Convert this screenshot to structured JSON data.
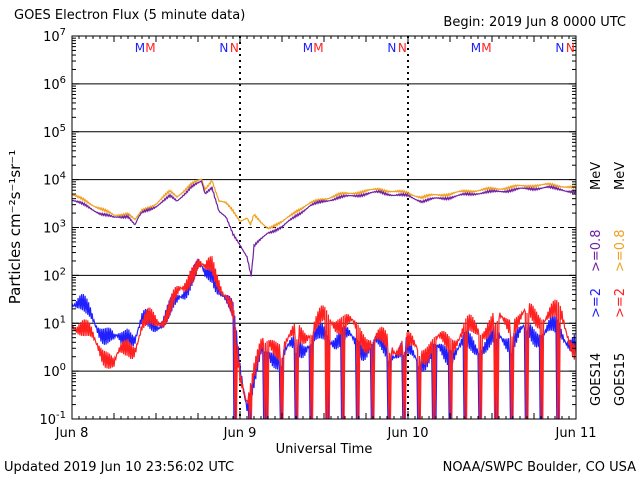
{
  "header": {
    "title": "GOES Electron Flux (5 minute data)",
    "begin": "Begin: 2019 Jun 8 0000 UTC"
  },
  "footer": {
    "updated": "Updated 2019 Jun 10 23:56:02 UTC",
    "source": "NOAA/SWPC Boulder, CO USA"
  },
  "chart_data": {
    "type": "line",
    "xlabel": "Universal Time",
    "ylabel": "Particles cm⁻²s⁻¹sr⁻¹",
    "x_unit": "hours since 2019 Jun 8 0000 UTC",
    "xlim": [
      0,
      72
    ],
    "ylim_log10": [
      -1,
      7
    ],
    "yscale": "log",
    "x_ticks": [
      {
        "x": 0,
        "label": "Jun 8"
      },
      {
        "x": 24,
        "label": "Jun 9"
      },
      {
        "x": 48,
        "label": "Jun 10"
      },
      {
        "x": 72,
        "label": "Jun 11"
      }
    ],
    "y_ticks": [
      {
        "exp": -1,
        "label": "10",
        "sup": "-1"
      },
      {
        "exp": 0,
        "label": "10",
        "sup": "0"
      },
      {
        "exp": 1,
        "label": "10",
        "sup": "1"
      },
      {
        "exp": 2,
        "label": "10",
        "sup": "2"
      },
      {
        "exp": 3,
        "label": "10",
        "sup": "3"
      },
      {
        "exp": 4,
        "label": "10",
        "sup": "4"
      },
      {
        "exp": 5,
        "label": "10",
        "sup": "5"
      },
      {
        "exp": 6,
        "label": "10",
        "sup": "6"
      },
      {
        "exp": 7,
        "label": "10",
        "sup": "7"
      }
    ],
    "grid_y_exps": [
      0,
      1,
      2,
      3,
      4,
      5,
      6
    ],
    "dashed_threshold_exp": 3,
    "midnight_marks": [
      24,
      48
    ],
    "markers": [
      {
        "x": 9.7,
        "text": "M",
        "color": "#2020ff"
      },
      {
        "x": 11.2,
        "text": "M",
        "color": "#ff2020"
      },
      {
        "x": 21.7,
        "text": "N",
        "color": "#2020ff"
      },
      {
        "x": 23.2,
        "text": "N",
        "color": "#ff2020"
      },
      {
        "x": 33.7,
        "text": "M",
        "color": "#2020ff"
      },
      {
        "x": 35.2,
        "text": "M",
        "color": "#ff2020"
      },
      {
        "x": 45.7,
        "text": "N",
        "color": "#2020ff"
      },
      {
        "x": 47.2,
        "text": "N",
        "color": "#ff2020"
      },
      {
        "x": 57.7,
        "text": "M",
        "color": "#2020ff"
      },
      {
        "x": 59.2,
        "text": "M",
        "color": "#ff2020"
      },
      {
        "x": 69.7,
        "text": "N",
        "color": "#2020ff"
      },
      {
        "x": 71.2,
        "text": "N",
        "color": "#ff2020"
      }
    ],
    "legend": {
      "groups": [
        {
          "sat": "GOES14",
          "lo_label": ">=2",
          "hi_label": ">=0.8",
          "lo_color": "#2020ff",
          "hi_color": "#7020a0"
        },
        {
          "sat": "GOES15",
          "lo_label": ">=2",
          "hi_label": ">=0.8",
          "lo_color": "#ff2020",
          "hi_color": "#f0a020"
        }
      ],
      "unit": "MeV"
    },
    "series": [
      {
        "name": "GOES15 >=0.8 MeV",
        "color": "#f0a020",
        "log10_points": [
          [
            0,
            3.68
          ],
          [
            2,
            3.55
          ],
          [
            4,
            3.4
          ],
          [
            6,
            3.25
          ],
          [
            8,
            3.3
          ],
          [
            9,
            3.15
          ],
          [
            9.5,
            3.25
          ],
          [
            10,
            3.35
          ],
          [
            12,
            3.5
          ],
          [
            14,
            3.75
          ],
          [
            15,
            3.65
          ],
          [
            17,
            3.9
          ],
          [
            18.5,
            4.0
          ],
          [
            19,
            3.8
          ],
          [
            20,
            4.0
          ],
          [
            21,
            3.55
          ],
          [
            22,
            3.5
          ],
          [
            23,
            3.35
          ],
          [
            24,
            3.15
          ],
          [
            25,
            3.2
          ],
          [
            25.5,
            3.05
          ],
          [
            26,
            3.25
          ],
          [
            27,
            3.1
          ],
          [
            28,
            3.0
          ],
          [
            29,
            3.05
          ],
          [
            30,
            3.1
          ],
          [
            32,
            3.35
          ],
          [
            34,
            3.5
          ],
          [
            36,
            3.6
          ],
          [
            38,
            3.68
          ],
          [
            40,
            3.72
          ],
          [
            42,
            3.76
          ],
          [
            44,
            3.8
          ],
          [
            46,
            3.75
          ],
          [
            48,
            3.72
          ],
          [
            50,
            3.63
          ],
          [
            52,
            3.68
          ],
          [
            54,
            3.7
          ],
          [
            56,
            3.75
          ],
          [
            58,
            3.78
          ],
          [
            60,
            3.8
          ],
          [
            62,
            3.83
          ],
          [
            64,
            3.86
          ],
          [
            66,
            3.88
          ],
          [
            68,
            3.89
          ],
          [
            70,
            3.87
          ],
          [
            72,
            3.82
          ]
        ]
      },
      {
        "name": "GOES14 >=0.8 MeV",
        "color": "#7020a0",
        "log10_points": [
          [
            0,
            3.58
          ],
          [
            2,
            3.45
          ],
          [
            4,
            3.3
          ],
          [
            6,
            3.2
          ],
          [
            8,
            3.25
          ],
          [
            9,
            3.05
          ],
          [
            9.5,
            3.2
          ],
          [
            10,
            3.3
          ],
          [
            12,
            3.45
          ],
          [
            14,
            3.65
          ],
          [
            15,
            3.55
          ],
          [
            17,
            3.85
          ],
          [
            18.5,
            3.95
          ],
          [
            19,
            3.7
          ],
          [
            20,
            3.85
          ],
          [
            21,
            3.35
          ],
          [
            22,
            3.2
          ],
          [
            23,
            2.85
          ],
          [
            24,
            2.65
          ],
          [
            25,
            2.4
          ],
          [
            25.6,
            2.0
          ],
          [
            26,
            2.6
          ],
          [
            27,
            2.75
          ],
          [
            28,
            2.9
          ],
          [
            29,
            2.95
          ],
          [
            30,
            3.0
          ],
          [
            32,
            3.25
          ],
          [
            34,
            3.45
          ],
          [
            36,
            3.55
          ],
          [
            38,
            3.62
          ],
          [
            40,
            3.66
          ],
          [
            42,
            3.7
          ],
          [
            44,
            3.74
          ],
          [
            46,
            3.68
          ],
          [
            48,
            3.66
          ],
          [
            50,
            3.55
          ],
          [
            52,
            3.6
          ],
          [
            54,
            3.63
          ],
          [
            56,
            3.68
          ],
          [
            58,
            3.72
          ],
          [
            60,
            3.74
          ],
          [
            62,
            3.77
          ],
          [
            64,
            3.8
          ],
          [
            66,
            3.82
          ],
          [
            68,
            3.83
          ],
          [
            70,
            3.8
          ],
          [
            72,
            3.72
          ]
        ]
      },
      {
        "name": "GOES14 >=2 MeV",
        "color": "#2020ff",
        "log10_points": [
          [
            0,
            1.55
          ],
          [
            1,
            1.4
          ],
          [
            2,
            1.2
          ],
          [
            3,
            1.1
          ],
          [
            4,
            0.95
          ],
          [
            5,
            0.75
          ],
          [
            6,
            0.55
          ],
          [
            7,
            0.65
          ],
          [
            8,
            0.9
          ],
          [
            9,
            0.7
          ],
          [
            10,
            0.95
          ],
          [
            11,
            1.0
          ],
          [
            12,
            1.05
          ],
          [
            13,
            1.1
          ],
          [
            14,
            1.2
          ],
          [
            15,
            1.4
          ],
          [
            16,
            1.7
          ],
          [
            17,
            2.05
          ],
          [
            18,
            2.15
          ],
          [
            19,
            1.9
          ],
          [
            20,
            2.1
          ],
          [
            21,
            1.85
          ],
          [
            22,
            1.45
          ],
          [
            23,
            1.1
          ],
          [
            23.5,
            0.6
          ],
          [
            24,
            0.1
          ],
          [
            25,
            -0.6
          ],
          [
            26,
            -0.2
          ],
          [
            27,
            0.3
          ],
          [
            28,
            0.35
          ],
          [
            29,
            0.4
          ],
          [
            30,
            0.3
          ],
          [
            32,
            0.5
          ],
          [
            34,
            0.65
          ],
          [
            36,
            0.7
          ],
          [
            38,
            0.75
          ],
          [
            40,
            0.6
          ],
          [
            42,
            0.55
          ],
          [
            44,
            0.5
          ],
          [
            46,
            0.45
          ],
          [
            48,
            0.35
          ],
          [
            50,
            0.3
          ],
          [
            52,
            0.35
          ],
          [
            54,
            0.45
          ],
          [
            56,
            0.5
          ],
          [
            58,
            0.55
          ],
          [
            60,
            0.6
          ],
          [
            62,
            0.7
          ],
          [
            64,
            0.75
          ],
          [
            66,
            0.8
          ],
          [
            68,
            0.85
          ],
          [
            70,
            0.8
          ],
          [
            72,
            0.6
          ]
        ]
      },
      {
        "name": "GOES15 >=2 MeV",
        "color": "#ff2020",
        "log10_points": [
          [
            0,
            1.1
          ],
          [
            1,
            0.95
          ],
          [
            2,
            0.75
          ],
          [
            3,
            0.65
          ],
          [
            4,
            0.55
          ],
          [
            5,
            0.35
          ],
          [
            6,
            0.05
          ],
          [
            7,
            0.35
          ],
          [
            8,
            0.6
          ],
          [
            9,
            0.55
          ],
          [
            10,
            0.85
          ],
          [
            11,
            1.0
          ],
          [
            12,
            1.1
          ],
          [
            13,
            1.15
          ],
          [
            14,
            1.3
          ],
          [
            15,
            1.5
          ],
          [
            16,
            1.75
          ],
          [
            17,
            2.15
          ],
          [
            18,
            2.25
          ],
          [
            19,
            2.0
          ],
          [
            20,
            2.2
          ],
          [
            21,
            1.95
          ],
          [
            22,
            1.6
          ],
          [
            23,
            1.1
          ],
          [
            23.5,
            0.4
          ],
          [
            24,
            -0.2
          ],
          [
            25,
            -0.5
          ],
          [
            26,
            0.1
          ],
          [
            27,
            0.4
          ],
          [
            28,
            0.5
          ],
          [
            29,
            0.6
          ],
          [
            30,
            0.55
          ],
          [
            32,
            0.7
          ],
          [
            34,
            0.9
          ],
          [
            36,
            1.05
          ],
          [
            38,
            1.1
          ],
          [
            40,
            0.9
          ],
          [
            42,
            0.7
          ],
          [
            44,
            0.6
          ],
          [
            46,
            0.55
          ],
          [
            48,
            0.5
          ],
          [
            50,
            0.45
          ],
          [
            52,
            0.55
          ],
          [
            54,
            0.65
          ],
          [
            56,
            0.8
          ],
          [
            58,
            0.9
          ],
          [
            60,
            0.95
          ],
          [
            62,
            1.05
          ],
          [
            64,
            1.1
          ],
          [
            66,
            1.15
          ],
          [
            68,
            1.2
          ],
          [
            70,
            1.1
          ],
          [
            72,
            0.45
          ]
        ]
      }
    ]
  }
}
